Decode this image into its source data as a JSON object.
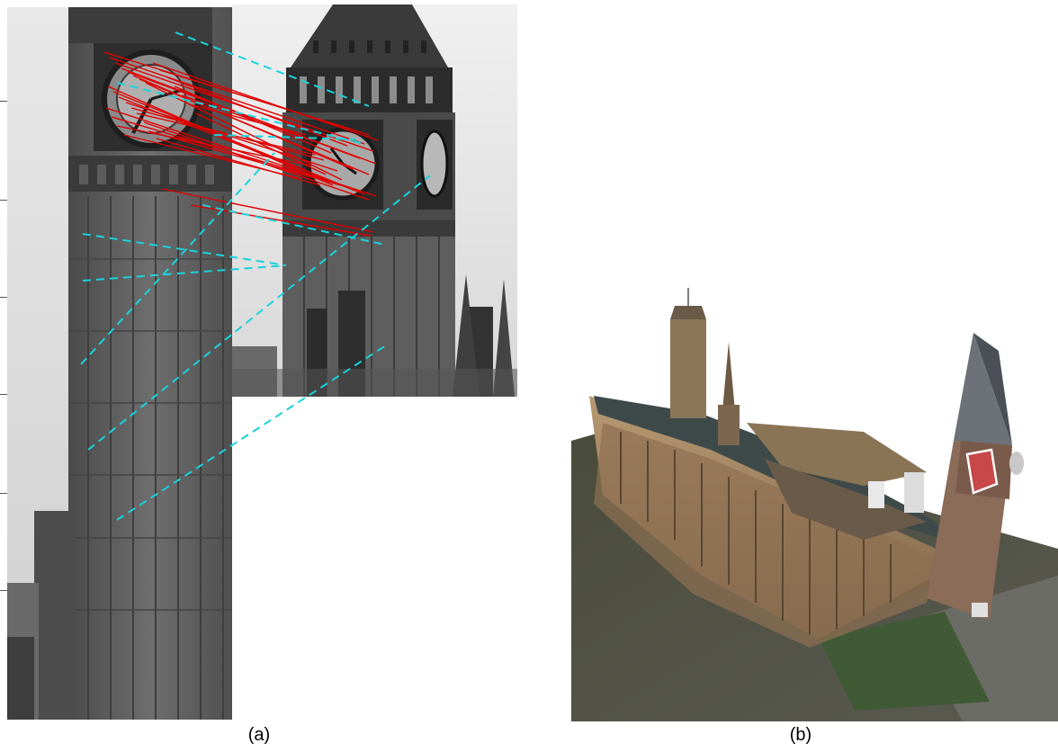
{
  "figure": {
    "panels": [
      {
        "id": "a",
        "caption": "(a)"
      },
      {
        "id": "b",
        "caption": "(b)"
      }
    ]
  },
  "overlay": {
    "inlier_color": "#e00000",
    "outlier_color": "#19d3dc"
  }
}
